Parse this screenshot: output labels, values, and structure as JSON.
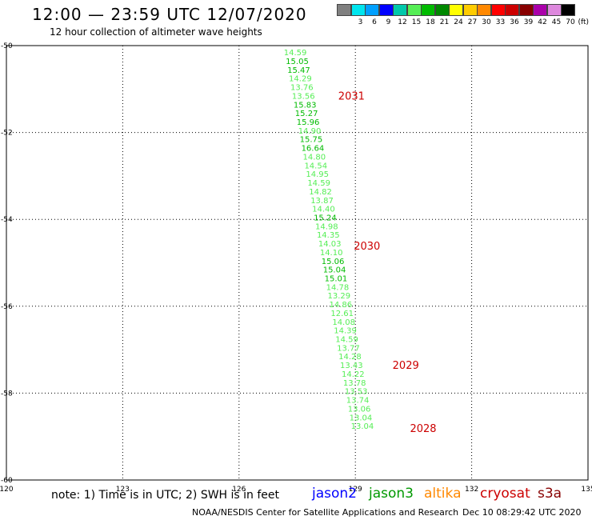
{
  "header": {
    "title": "12:00 — 23:59 UTC 12/07/2020",
    "subtitle": "12 hour collection of altimeter wave heights"
  },
  "color_scale": {
    "unit": "(ft)",
    "swatches": [
      {
        "label": "",
        "color": "#808080"
      },
      {
        "label": "3",
        "color": "#00e5ee"
      },
      {
        "label": "6",
        "color": "#00a0ff"
      },
      {
        "label": "9",
        "color": "#0000ff"
      },
      {
        "label": "12",
        "color": "#00c8aa"
      },
      {
        "label": "15",
        "color": "#55ee55"
      },
      {
        "label": "18",
        "color": "#00bb00"
      },
      {
        "label": "21",
        "color": "#008800"
      },
      {
        "label": "24",
        "color": "#ffff00"
      },
      {
        "label": "27",
        "color": "#ffcc00"
      },
      {
        "label": "30",
        "color": "#ff8800"
      },
      {
        "label": "33",
        "color": "#ff0000"
      },
      {
        "label": "36",
        "color": "#cc0000"
      },
      {
        "label": "39",
        "color": "#880000"
      },
      {
        "label": "42",
        "color": "#aa00aa"
      },
      {
        "label": "45",
        "color": "#dd88dd"
      },
      {
        "label": "70",
        "color": "#000000"
      }
    ]
  },
  "chart_data": {
    "type": "scatter",
    "title": "12:00 — 23:59 UTC 12/07/2020",
    "subtitle": "12 hour collection of altimeter wave heights",
    "xlim": [
      120,
      135
    ],
    "ylim": [
      -60,
      -50
    ],
    "xticks": [
      "120",
      "123",
      "126",
      "129",
      "132",
      "135"
    ],
    "yticks": [
      "-50",
      "-52",
      "-54",
      "-56",
      "-58",
      "-60"
    ],
    "xtick_values": [
      120,
      123,
      126,
      129,
      132,
      135
    ],
    "ytick_values": [
      -50,
      -52,
      -54,
      -56,
      -58,
      -60
    ],
    "grid": true,
    "series": [
      {
        "name": "cryosat",
        "color": "#cc0000",
        "points": [
          {
            "lon": 127.45,
            "lat": -50.15,
            "label": "14.59",
            "color": "#55ee55"
          },
          {
            "lon": 127.5,
            "lat": -50.35,
            "label": "15.05",
            "color": "#00bb00"
          },
          {
            "lon": 127.54,
            "lat": -50.55,
            "label": "15.47",
            "color": "#00bb00"
          },
          {
            "lon": 127.58,
            "lat": -50.75,
            "label": "14.29",
            "color": "#55ee55"
          },
          {
            "lon": 127.62,
            "lat": -50.95,
            "label": "13.76",
            "color": "#55ee55"
          },
          {
            "lon": 127.66,
            "lat": -51.15,
            "label": "13.56",
            "color": "#55ee55"
          },
          {
            "lon": 127.7,
            "lat": -51.35,
            "label": "15.83",
            "color": "#00bb00"
          },
          {
            "lon": 127.74,
            "lat": -51.55,
            "label": "15.27",
            "color": "#00bb00"
          },
          {
            "lon": 127.78,
            "lat": -51.75,
            "label": "15.96",
            "color": "#00bb00"
          },
          {
            "lon": 127.82,
            "lat": -51.95,
            "label": "14.90",
            "color": "#55ee55"
          },
          {
            "lon": 127.86,
            "lat": -52.15,
            "label": "15.75",
            "color": "#00bb00"
          },
          {
            "lon": 127.9,
            "lat": -52.35,
            "label": "16.64",
            "color": "#00bb00"
          },
          {
            "lon": 127.94,
            "lat": -52.55,
            "label": "14.80",
            "color": "#55ee55"
          },
          {
            "lon": 127.98,
            "lat": -52.75,
            "label": "14.54",
            "color": "#55ee55"
          },
          {
            "lon": 128.02,
            "lat": -52.95,
            "label": "14.95",
            "color": "#55ee55"
          },
          {
            "lon": 128.06,
            "lat": -53.15,
            "label": "14.59",
            "color": "#55ee55"
          },
          {
            "lon": 128.1,
            "lat": -53.35,
            "label": "14.82",
            "color": "#55ee55"
          },
          {
            "lon": 128.14,
            "lat": -53.55,
            "label": "13.87",
            "color": "#55ee55"
          },
          {
            "lon": 128.18,
            "lat": -53.75,
            "label": "14.40",
            "color": "#55ee55"
          },
          {
            "lon": 128.22,
            "lat": -53.95,
            "label": "15.24",
            "color": "#00bb00"
          },
          {
            "lon": 128.26,
            "lat": -54.15,
            "label": "14.98",
            "color": "#55ee55"
          },
          {
            "lon": 128.3,
            "lat": -54.35,
            "label": "14.35",
            "color": "#55ee55"
          },
          {
            "lon": 128.34,
            "lat": -54.55,
            "label": "14.03",
            "color": "#55ee55"
          },
          {
            "lon": 128.38,
            "lat": -54.75,
            "label": "14.10",
            "color": "#55ee55"
          },
          {
            "lon": 128.42,
            "lat": -54.95,
            "label": "15.06",
            "color": "#00bb00"
          },
          {
            "lon": 128.46,
            "lat": -55.15,
            "label": "15.04",
            "color": "#00bb00"
          },
          {
            "lon": 128.5,
            "lat": -55.35,
            "label": "15.01",
            "color": "#00bb00"
          },
          {
            "lon": 128.54,
            "lat": -55.55,
            "label": "14.78",
            "color": "#55ee55"
          },
          {
            "lon": 128.58,
            "lat": -55.75,
            "label": "13.29",
            "color": "#55ee55"
          },
          {
            "lon": 128.62,
            "lat": -55.95,
            "label": "14.86",
            "color": "#55ee55"
          },
          {
            "lon": 128.66,
            "lat": -56.15,
            "label": "12.61",
            "color": "#55ee55"
          },
          {
            "lon": 128.7,
            "lat": -56.35,
            "label": "14.08",
            "color": "#55ee55"
          },
          {
            "lon": 128.74,
            "lat": -56.55,
            "label": "14.39",
            "color": "#55ee55"
          },
          {
            "lon": 128.78,
            "lat": -56.75,
            "label": "14.59",
            "color": "#55ee55"
          },
          {
            "lon": 128.82,
            "lat": -56.95,
            "label": "13.77",
            "color": "#55ee55"
          },
          {
            "lon": 128.86,
            "lat": -57.15,
            "label": "14.28",
            "color": "#55ee55"
          },
          {
            "lon": 128.9,
            "lat": -57.35,
            "label": "13.43",
            "color": "#55ee55"
          },
          {
            "lon": 128.94,
            "lat": -57.55,
            "label": "14.22",
            "color": "#55ee55"
          },
          {
            "lon": 128.98,
            "lat": -57.75,
            "label": "13.78",
            "color": "#55ee55"
          },
          {
            "lon": 129.02,
            "lat": -57.95,
            "label": "13.53",
            "color": "#55ee55"
          },
          {
            "lon": 129.06,
            "lat": -58.15,
            "label": "13.74",
            "color": "#55ee55"
          },
          {
            "lon": 129.1,
            "lat": -58.35,
            "label": "13.06",
            "color": "#55ee55"
          },
          {
            "lon": 129.14,
            "lat": -58.55,
            "label": "13.04",
            "color": "#55ee55"
          },
          {
            "lon": 129.18,
            "lat": -58.75,
            "label": "13.04",
            "color": "#55ee55"
          }
        ],
        "time_labels": [
          {
            "lon": 128.9,
            "lat": -51.15,
            "label": "2031"
          },
          {
            "lon": 129.3,
            "lat": -54.6,
            "label": "2030"
          },
          {
            "lon": 130.3,
            "lat": -57.35,
            "label": "2029"
          },
          {
            "lon": 130.75,
            "lat": -58.8,
            "label": "2028"
          }
        ]
      }
    ]
  },
  "legend": {
    "note": "note: 1) Time is in UTC; 2) SWH is in feet",
    "satellites": [
      {
        "name": "jason2",
        "color": "#0000ff"
      },
      {
        "name": "jason3",
        "color": "#009900"
      },
      {
        "name": "altika",
        "color": "#ff8800"
      },
      {
        "name": "cryosat",
        "color": "#cc0000"
      },
      {
        "name": "s3a",
        "color": "#880000"
      }
    ]
  },
  "footer": {
    "credit": "NOAA/NESDIS Center for Satellite Applications and Research",
    "timestamp": "Dec 10 08:29:42 UTC 2020"
  }
}
